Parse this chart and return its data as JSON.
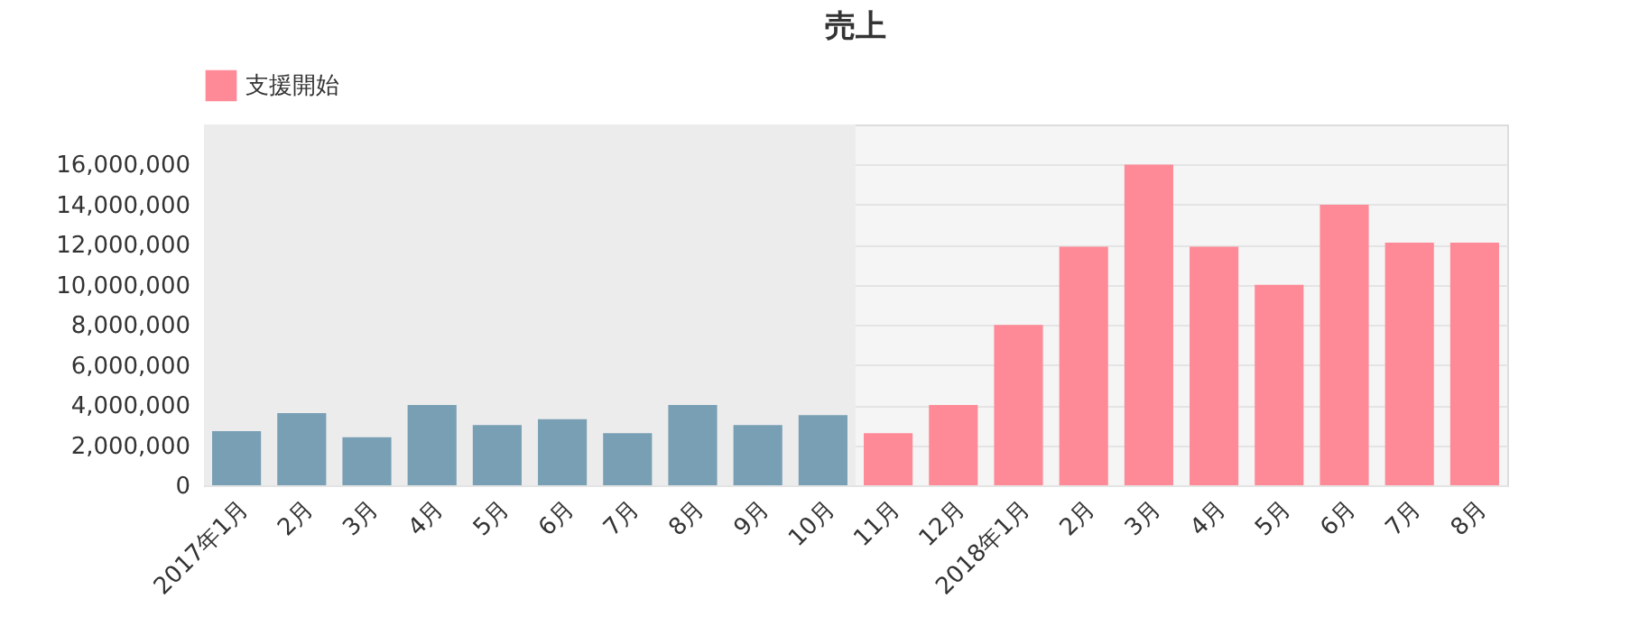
{
  "chart_data": {
    "type": "bar",
    "title": "売上",
    "categories": [
      "2017年1月",
      "2月",
      "3月",
      "4月",
      "5月",
      "6月",
      "7月",
      "8月",
      "9月",
      "10月",
      "11月",
      "12月",
      "2018年1月",
      "2月",
      "3月",
      "4月",
      "5月",
      "6月",
      "7月",
      "8月"
    ],
    "series": [
      {
        "color": "#789fb4",
        "values": [
          2700000,
          3600000,
          2400000,
          4000000,
          3000000,
          3300000,
          2600000,
          4000000,
          3000000,
          3500000,
          null,
          null,
          null,
          null,
          null,
          null,
          null,
          null,
          null,
          null
        ]
      },
      {
        "name": "支援開始",
        "color": "#ff8a97",
        "values": [
          null,
          null,
          null,
          null,
          null,
          null,
          null,
          null,
          null,
          null,
          2600000,
          4000000,
          8000000,
          11900000,
          16000000,
          11900000,
          10000000,
          14000000,
          12100000,
          12100000
        ]
      }
    ],
    "ylim": [
      0,
      18000000
    ],
    "yticks": [
      0,
      {
        "value": 2000000,
        "label": "2,000,000"
      },
      {
        "value": 4000000,
        "label": "4,000,000"
      },
      {
        "value": 6000000,
        "label": "6,000,000"
      },
      {
        "value": 8000000,
        "label": "8,000,000"
      },
      {
        "value": 10000000,
        "label": "10,000,000"
      },
      {
        "value": 12000000,
        "label": "12,000,000"
      },
      {
        "value": 14000000,
        "label": "14,000,000"
      },
      {
        "value": 16000000,
        "label": "16,000,000"
      }
    ],
    "bands": [
      {
        "axis": "x",
        "from": "2017年1月",
        "to": "10月",
        "color": "#ececec"
      }
    ],
    "grid": "y",
    "legend": "top left"
  }
}
